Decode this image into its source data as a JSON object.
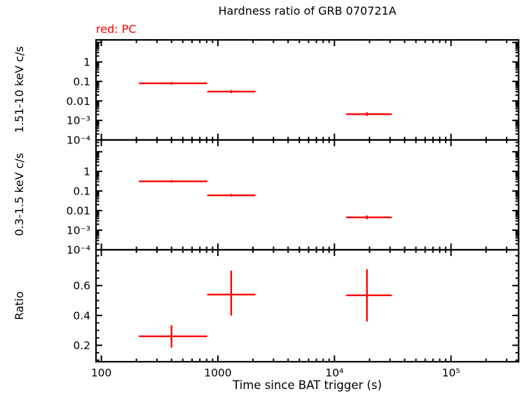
{
  "chart_data": {
    "type": "scatter",
    "title": "Hardness ratio of GRB 070721A",
    "annotation": "red: PC",
    "annotation_color": "#ff0000",
    "series_color": "#ff0000",
    "xlabel": "Time since BAT trigger (s)",
    "x_scale": "log",
    "xlim": [
      90,
      380000
    ],
    "x_ticks": [
      {
        "v": 100,
        "label": "100"
      },
      {
        "v": 1000,
        "label": "1000"
      },
      {
        "v": 10000,
        "label": "10⁴"
      },
      {
        "v": 100000,
        "label": "10⁵"
      }
    ],
    "grid": false,
    "legend": "none",
    "panels": [
      {
        "name": "hard-band",
        "ylabel": "1.51-10 keV c/s",
        "y_scale": "log",
        "ylim": [
          0.0001,
          13.5
        ],
        "y_ticks": [
          {
            "v": 1,
            "label": "1"
          },
          {
            "v": 0.1,
            "label": "0.1"
          },
          {
            "v": 0.01,
            "label": "0.01"
          },
          {
            "v": 0.001,
            "label": "10⁻³"
          },
          {
            "v": 0.0001,
            "label": "10⁻⁴"
          }
        ],
        "points": [
          {
            "x": 400,
            "xlo": 210,
            "xhi": 810,
            "y": 0.08,
            "ylo": 0.068,
            "yhi": 0.094
          },
          {
            "x": 1300,
            "xlo": 810,
            "xhi": 2100,
            "y": 0.03,
            "ylo": 0.025,
            "yhi": 0.036
          },
          {
            "x": 19000,
            "xlo": 12600,
            "xhi": 31000,
            "y": 0.0021,
            "ylo": 0.0017,
            "yhi": 0.0026
          }
        ]
      },
      {
        "name": "soft-band",
        "ylabel": "0.3-1.5 keV c/s",
        "y_scale": "log",
        "ylim": [
          0.0001,
          40
        ],
        "y_ticks": [
          {
            "v": 1,
            "label": "1"
          },
          {
            "v": 0.1,
            "label": "0.1"
          },
          {
            "v": 0.01,
            "label": "0.01"
          },
          {
            "v": 0.001,
            "label": "10⁻³"
          },
          {
            "v": 0.0001,
            "label": "10⁻⁴"
          }
        ],
        "points": [
          {
            "x": 400,
            "xlo": 210,
            "xhi": 810,
            "y": 0.31,
            "ylo": 0.27,
            "yhi": 0.36
          },
          {
            "x": 1300,
            "xlo": 810,
            "xhi": 2100,
            "y": 0.06,
            "ylo": 0.051,
            "yhi": 0.071
          },
          {
            "x": 19000,
            "xlo": 12600,
            "xhi": 31000,
            "y": 0.0045,
            "ylo": 0.0036,
            "yhi": 0.0056
          }
        ]
      },
      {
        "name": "ratio",
        "ylabel": "Ratio",
        "y_scale": "linear",
        "ylim": [
          0.09,
          0.84
        ],
        "y_minor_step": 0.05,
        "y_ticks": [
          {
            "v": 0.2,
            "label": "0.2"
          },
          {
            "v": 0.4,
            "label": "0.4"
          },
          {
            "v": 0.6,
            "label": "0.6"
          }
        ],
        "points": [
          {
            "x": 400,
            "xlo": 210,
            "xhi": 810,
            "y": 0.26,
            "ylo": 0.185,
            "yhi": 0.335
          },
          {
            "x": 1300,
            "xlo": 810,
            "xhi": 2100,
            "y": 0.54,
            "ylo": 0.4,
            "yhi": 0.7
          },
          {
            "x": 19000,
            "xlo": 12600,
            "xhi": 31000,
            "y": 0.535,
            "ylo": 0.36,
            "yhi": 0.71
          }
        ]
      }
    ]
  }
}
